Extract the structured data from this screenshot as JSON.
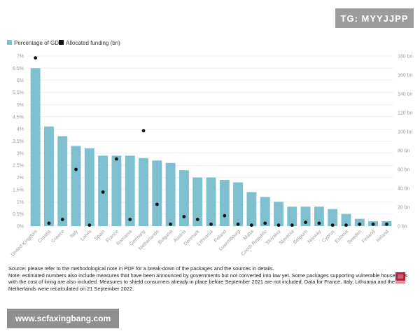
{
  "watermark_top": "TG: MYYJJPP",
  "watermark_bottom": "www.scfaxingbang.com",
  "notes": {
    "source": "Source: please refer to the methodological note in PDF for a break-down of the packages and the sources in details.",
    "note": "Note: estimated numbers also include measures that have been announced by governments but not converted into law yet. Some packages supporting vulnerable households with the cost of living are also included. Measures to shield consumers already in place before September 2021 are not included. Data for France, Italy, Lithuania and the Netherlands were recalculated on 21 September 2022."
  },
  "logo_text": "Bruegel",
  "colors": {
    "bar": "#7ec0cf",
    "dot": "#111111",
    "grid": "#e6e6e6"
  },
  "chart_data": {
    "type": "bar",
    "legend_position": "top-left",
    "grid": true,
    "series": [
      {
        "name": "Percentage of GDP",
        "kind": "bar",
        "axis": "left",
        "values": [
          6.5,
          4.1,
          3.7,
          3.3,
          3.2,
          2.9,
          2.9,
          2.9,
          2.8,
          2.7,
          2.6,
          2.3,
          2.0,
          2.0,
          1.9,
          1.8,
          1.4,
          1.2,
          1.0,
          0.8,
          0.8,
          0.8,
          0.7,
          0.5,
          0.3,
          0.2,
          0.2
        ]
      },
      {
        "name": "Allocated funding (bn)",
        "kind": "dot",
        "axis": "right",
        "values": [
          178,
          3,
          7,
          60,
          1,
          36,
          71,
          7,
          101,
          23,
          2,
          10,
          7,
          2,
          11,
          2,
          1,
          3,
          1,
          1,
          4,
          3,
          1,
          1,
          2,
          2,
          2
        ]
      }
    ],
    "categories": [
      "United Kingdom",
      "Croatia",
      "Greece",
      "Italy",
      "Latvia",
      "Spain",
      "France",
      "Romania",
      "Germany",
      "Netherlands",
      "Bulgaria",
      "Austria",
      "Denmark",
      "Lithuania",
      "Poland",
      "Luxembourg",
      "Malta",
      "Czech Republic",
      "Slovakia",
      "Slovenia",
      "Belgium",
      "Norway",
      "Cyprus",
      "Estonia",
      "Sweden",
      "Finland",
      "Ireland"
    ],
    "left_axis": {
      "min": 0,
      "max": 7,
      "ticks": [
        "0%",
        "0.5%",
        "1%",
        "1.5%",
        "2%",
        "2.5%",
        "3%",
        "3.5%",
        "4%",
        "4.5%",
        "5%",
        "5.5%",
        "6%",
        "6.5%",
        "7%"
      ]
    },
    "right_axis": {
      "min": 0,
      "max": 180,
      "ticks": [
        "0 bn",
        "20 bn",
        "40 bn",
        "60 bn",
        "80 bn",
        "100 bn",
        "120 bn",
        "140 bn",
        "160 bn",
        "180 bn"
      ]
    }
  }
}
